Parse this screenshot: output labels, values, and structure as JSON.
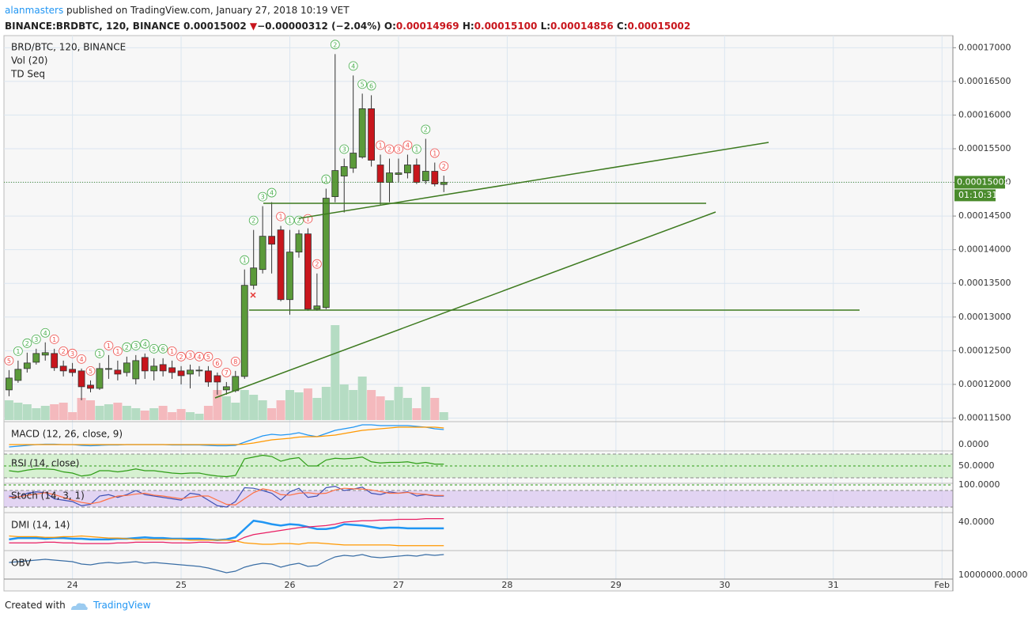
{
  "header": {
    "user": "alanmasters",
    "published": "published on TradingView.com, January 27, 2018 10:19 VET",
    "symbol": "BINANCE:BRDBTC, 120, BINANCE",
    "last": "0.00015002",
    "arrow": "▼",
    "change": "−0.00000312 (−2.04%)",
    "o_label": "O:",
    "o": "0.00014969",
    "h_label": "H:",
    "h": "0.00015100",
    "l_label": "L:",
    "l": "0.00014856",
    "c_label": "C:",
    "c": "0.00015002"
  },
  "footer": {
    "created": "Created with",
    "brand": "TradingView"
  },
  "chart_data": {
    "type": "candlestick",
    "title": "BRD/BTC, 120, BINANCE",
    "up_color": "#5b9a3a",
    "down_color": "#c8161d",
    "x": [
      23.4167,
      23.5,
      23.5833,
      23.6667,
      23.75,
      23.8333,
      23.9167,
      24,
      24.0833,
      24.1667,
      24.25,
      24.3333,
      24.4167,
      24.5,
      24.5833,
      24.6667,
      24.75,
      24.8333,
      24.9167,
      25,
      25.0833,
      25.1667,
      25.25,
      25.3333,
      25.4167,
      25.5,
      25.5833,
      25.6667,
      25.75,
      25.8333,
      25.9167,
      26,
      26.0833,
      26.1667,
      26.25,
      26.3333,
      26.4167,
      26.5,
      26.5833,
      26.6667,
      26.75,
      26.8333,
      26.9167,
      27,
      27.0833,
      27.1667,
      27.25,
      27.3333,
      27.4167
    ],
    "open": [
      0.00011918,
      0.00012059,
      0.00012235,
      0.00012329,
      0.00012435,
      0.00012459,
      0.00012271,
      0.00012224,
      0.000122,
      0.00011988,
      0.00011941,
      0.00012224,
      0.00012212,
      0.00012176,
      0.00012082,
      0.000124,
      0.000122,
      0.00012294,
      0.00012247,
      0.000122,
      0.00012153,
      0.000122,
      0.000122,
      0.00012129,
      0.00011918,
      0.00011906,
      0.00012118,
      0.00013471,
      0.00013706,
      0.000142,
      0.00014294,
      0.00013259,
      0.00013965,
      0.00014235,
      0.00013118,
      0.00013141,
      0.00014788,
      0.00015094,
      0.00015212,
      0.00015376,
      0.00016094,
      0.00015259,
      0.00015,
      0.00015118,
      0.00015141,
      0.00015259,
      0.00015024,
      0.00015165,
      0.00014969
    ],
    "high": [
      0.00012212,
      0.00012353,
      0.00012471,
      0.00012529,
      0.00012624,
      0.00012529,
      0.00012353,
      0.00012318,
      0.00012235,
      0.00012059,
      0.00012318,
      0.00012435,
      0.00012353,
      0.00012412,
      0.00012435,
      0.00012459,
      0.00012388,
      0.00012388,
      0.00012353,
      0.00012271,
      0.00012294,
      0.00012271,
      0.00012271,
      0.00012176,
      0.00012035,
      0.000122,
      0.00013706,
      0.00014294,
      0.00014647,
      0.00014706,
      0.00014353,
      0.00014294,
      0.00014294,
      0.00014318,
      0.00013647,
      0.00014906,
      0.00016906,
      0.00015353,
      0.00016588,
      0.00016318,
      0.00016294,
      0.00015412,
      0.00015353,
      0.00015353,
      0.00015412,
      0.00015353,
      0.00015647,
      0.00015294,
      0.000151
    ],
    "low": [
      0.00011824,
      0.00012024,
      0.00012176,
      0.00012294,
      0.00012353,
      0.000122,
      0.00012118,
      0.00012118,
      0.00011765,
      0.00011882,
      0.00011918,
      0.00012082,
      0.00012059,
      0.00012118,
      0.00012,
      0.00012082,
      0.00012059,
      0.00012118,
      0.00012082,
      0.00012,
      0.00011941,
      0.00012118,
      0.00011965,
      0.00011847,
      0.00011847,
      0.00011882,
      0.00012082,
      0.00013412,
      0.00013647,
      0.00013647,
      0.00013235,
      0.00013035,
      0.00013882,
      0.00013094,
      0.00013094,
      0.00013118,
      0.00014706,
      0.00014553,
      0.00015141,
      0.00015353,
      0.00015235,
      0.00014671,
      0.00014706,
      0.00015,
      0.00015059,
      0.00014976,
      0.00014976,
      0.00014941,
      0.00014856
    ],
    "close": [
      0.00012094,
      0.00012224,
      0.00012318,
      0.00012459,
      0.00012471,
      0.00012247,
      0.000122,
      0.00012176,
      0.00011965,
      0.00011941,
      0.00012235,
      0.00012235,
      0.00012153,
      0.00012318,
      0.00012353,
      0.000122,
      0.00012271,
      0.000122,
      0.00012176,
      0.00012129,
      0.00012212,
      0.00012212,
      0.00012035,
      0.00012035,
      0.00011965,
      0.00012118,
      0.00013471,
      0.00013729,
      0.000142,
      0.00014082,
      0.00013259,
      0.00013965,
      0.00014235,
      0.00013118,
      0.00013165,
      0.00014765,
      0.00015176,
      0.00015235,
      0.00015435,
      0.00016094,
      0.00015329,
      0.00015,
      0.00015141,
      0.00015141,
      0.00015259,
      0.00015,
      0.00015165,
      0.00014976,
      0.00015002
    ],
    "last_price_label": "0.00015002",
    "countdown": "01:10:31",
    "xlim": [
      23.37,
      32.1
    ],
    "xticks": [
      24,
      25,
      26,
      27,
      28,
      29,
      30,
      31,
      {
        "value": 32,
        "label": "Feb"
      }
    ],
    "ylim": [
      0.0001147,
      0.0001718
    ],
    "yticks": [
      {
        "value": 0.000115,
        "label": "0.00011500"
      },
      {
        "value": 0.00012,
        "label": "0.00012000"
      },
      {
        "value": 0.000125,
        "label": "0.00012500"
      },
      {
        "value": 0.00013,
        "label": "0.00013000"
      },
      {
        "value": 0.000135,
        "label": "0.00013500"
      },
      {
        "value": 0.00014,
        "label": "0.00014000"
      },
      {
        "value": 0.000145,
        "label": "0.00014500"
      },
      {
        "value": 0.00015,
        "label": "0.00015000"
      },
      {
        "value": 0.000155,
        "label": "0.00015500"
      },
      {
        "value": 0.00016,
        "label": "0.00016000"
      },
      {
        "value": 0.000165,
        "label": "0.00016500"
      },
      {
        "value": 0.00017,
        "label": "0.00017000"
      }
    ],
    "grid": true,
    "volume": {
      "name": "Vol (20)",
      "ylim": [
        0,
        300
      ],
      "up_color": "#b5dcc3",
      "down_color": "#f4b9bd",
      "values": [
        25,
        22,
        20,
        15,
        18,
        20,
        22,
        10,
        28,
        25,
        18,
        20,
        22,
        18,
        15,
        12,
        15,
        18,
        10,
        14,
        10,
        8,
        18,
        38,
        30,
        22,
        38,
        32,
        25,
        15,
        25,
        38,
        35,
        40,
        28,
        42,
        120,
        45,
        38,
        55,
        38,
        30,
        25,
        42,
        28,
        15,
        42,
        28,
        10
      ]
    },
    "td_seq": {
      "name": "TD Seq",
      "green_color": "#4caf50",
      "red_color": "#ef5350",
      "green": [
        null,
        "1",
        "2",
        "3",
        "4",
        null,
        null,
        null,
        null,
        null,
        "1",
        null,
        null,
        "2",
        "3",
        "4",
        "5",
        "6",
        null,
        null,
        null,
        null,
        null,
        null,
        null,
        null,
        "1",
        "2",
        "3",
        "4",
        null,
        "1",
        "2",
        null,
        null,
        "1",
        "2",
        "3",
        "4",
        "5",
        "6",
        null,
        null,
        null,
        null,
        "1",
        "2",
        null,
        null
      ],
      "red": [
        "5",
        null,
        null,
        null,
        null,
        "1",
        "2",
        "3",
        "4",
        "5",
        null,
        "1",
        "1",
        null,
        null,
        null,
        null,
        null,
        "1",
        "2",
        "3",
        "4",
        "5",
        "6",
        "7",
        "8",
        null,
        null,
        null,
        null,
        "1",
        null,
        null,
        "1",
        "2",
        null,
        null,
        null,
        null,
        null,
        null,
        "1",
        "2",
        "3",
        "4",
        null,
        null,
        "1",
        "2"
      ]
    },
    "indicators": [
      {
        "name": "MACD (12, 26, close, 9)",
        "ylim": [
          -0.6,
          2.7
        ],
        "yticks": [
          {
            "value": 0,
            "label": "0.0000"
          }
        ],
        "series": [
          {
            "color": "#2196f3",
            "values": [
              -0.3,
              -0.2,
              -0.1,
              0,
              0.05,
              0.05,
              0,
              0,
              -0.1,
              -0.15,
              -0.1,
              -0.05,
              -0.05,
              0,
              0,
              0,
              0,
              0,
              -0.05,
              -0.05,
              -0.05,
              -0.05,
              -0.1,
              -0.15,
              -0.15,
              -0.1,
              0.3,
              0.7,
              1.1,
              1.3,
              1.2,
              1.3,
              1.5,
              1.2,
              1,
              1.4,
              1.8,
              2,
              2.2,
              2.5,
              2.5,
              2.4,
              2.4,
              2.4,
              2.4,
              2.3,
              2.2,
              2,
              1.9
            ]
          },
          {
            "color": "#ff9800",
            "values": [
              0,
              0,
              0,
              0,
              0,
              0,
              0,
              0,
              0,
              0,
              0,
              0,
              0,
              0,
              0,
              0,
              0,
              0,
              0,
              0,
              0,
              0,
              0,
              0,
              0,
              0,
              0.05,
              0.2,
              0.4,
              0.6,
              0.7,
              0.8,
              0.95,
              1,
              1,
              1.1,
              1.2,
              1.4,
              1.6,
              1.8,
              1.9,
              2,
              2.1,
              2.2,
              2.2,
              2.2,
              2.2,
              2.2,
              2.1
            ]
          }
        ]
      },
      {
        "name": "RSI (14, close)",
        "ylim": [
          24.7,
          72.7
        ],
        "yticks": [
          {
            "value": 50,
            "label": "50.0000"
          }
        ],
        "band": [
          30,
          70
        ],
        "band_color": "#c8ecc0",
        "series": [
          {
            "color": "#2e9d16",
            "values": [
              42,
              40,
              43,
              45,
              45,
              44,
              40,
              38,
              33,
              35,
              42,
              42,
              40,
              42,
              45,
              42,
              42,
              40,
              38,
              37,
              38,
              38,
              35,
              33,
              32,
              34,
              62,
              65,
              68,
              66,
              58,
              62,
              64,
              50,
              50,
              60,
              63,
              62,
              63,
              65,
              57,
              55,
              56,
              56,
              57,
              54,
              56,
              53,
              53
            ]
          }
        ]
      },
      {
        "name": "Stoch (14, 3, 1)",
        "ylim": [
          8.6,
          100
        ],
        "yticks": [
          {
            "value": 100,
            "label": "100.0000"
          }
        ],
        "band": [
          20,
          80
        ],
        "band_color": "#d9c4f0",
        "series": [
          {
            "color": "#3f51b5",
            "values": [
              60,
              55,
              70,
              75,
              72,
              50,
              45,
              40,
              25,
              30,
              60,
              65,
              55,
              65,
              80,
              65,
              60,
              55,
              50,
              45,
              70,
              65,
              45,
              25,
              20,
              40,
              90,
              88,
              80,
              70,
              45,
              75,
              88,
              55,
              60,
              90,
              95,
              80,
              85,
              92,
              70,
              65,
              75,
              70,
              75,
              60,
              65,
              60,
              60
            ]
          },
          {
            "color": "#ff7043",
            "values": [
              55,
              57,
              62,
              67,
              72,
              65,
              55,
              45,
              37,
              32,
              38,
              50,
              60,
              62,
              67,
              70,
              63,
              60,
              55,
              50,
              55,
              60,
              60,
              45,
              30,
              28,
              50,
              72,
              86,
              80,
              65,
              63,
              70,
              72,
              68,
              70,
              82,
              88,
              86,
              85,
              82,
              76,
              70,
              70,
              73,
              68,
              66,
              62,
              62
            ]
          }
        ]
      },
      {
        "name": "DMI (14, 14)",
        "ylim": [
          0,
          51.4
        ],
        "yticks": [
          {
            "value": 40,
            "label": "40.0000"
          }
        ],
        "series": [
          {
            "color": "#2196f3",
            "width": 2.5,
            "values": [
              15,
              17,
              17,
              17,
              16,
              17,
              17,
              16,
              16,
              15,
              15,
              15,
              16,
              16,
              17,
              18,
              17,
              17,
              16,
              16,
              16,
              16,
              15,
              14,
              15,
              18,
              30,
              42,
              40,
              37,
              35,
              37,
              36,
              33,
              30,
              30,
              32,
              37,
              36,
              35,
              33,
              31,
              32,
              32,
              31,
              31,
              31,
              31,
              31
            ]
          },
          {
            "color": "#e91e63",
            "values": [
              10,
              10,
              10,
              10,
              11,
              11,
              10,
              10,
              9,
              9,
              9,
              9,
              10,
              10,
              11,
              11,
              11,
              11,
              10,
              10,
              10,
              11,
              11,
              10,
              10,
              12,
              18,
              22,
              24,
              26,
              28,
              30,
              32,
              33,
              34,
              35,
              37,
              40,
              41,
              42,
              42,
              43,
              43,
              44,
              44,
              44,
              45,
              45,
              45
            ]
          },
          {
            "color": "#ff9800",
            "values": [
              20,
              19,
              19,
              19,
              18,
              18,
              19,
              19,
              20,
              19,
              18,
              17,
              17,
              16,
              15,
              15,
              15,
              15,
              15,
              15,
              14,
              14,
              14,
              14,
              14,
              13,
              10,
              9,
              8,
              8,
              9,
              9,
              8,
              10,
              10,
              9,
              8,
              7,
              7,
              7,
              7,
              7,
              7,
              6,
              6,
              6,
              6,
              6,
              6
            ]
          }
        ]
      },
      {
        "name": "OBV",
        "ylim": [
          0,
          68000000
        ],
        "yticks": [
          {
            "value": 10000000,
            "label": "10000000.0000"
          }
        ],
        "series": [
          {
            "color": "#3a6ea5",
            "values": [
              42000000,
              44000000,
              46000000,
              48000000,
              50000000,
              48000000,
              46000000,
              44000000,
              38000000,
              36000000,
              40000000,
              42000000,
              40000000,
              42000000,
              44000000,
              40000000,
              42000000,
              40000000,
              38000000,
              36000000,
              34000000,
              32000000,
              28000000,
              22000000,
              16000000,
              20000000,
              30000000,
              36000000,
              40000000,
              38000000,
              30000000,
              36000000,
              40000000,
              32000000,
              34000000,
              46000000,
              56000000,
              60000000,
              58000000,
              62000000,
              56000000,
              54000000,
              56000000,
              58000000,
              60000000,
              58000000,
              62000000,
              60000000,
              62000000
            ]
          }
        ]
      }
    ]
  }
}
